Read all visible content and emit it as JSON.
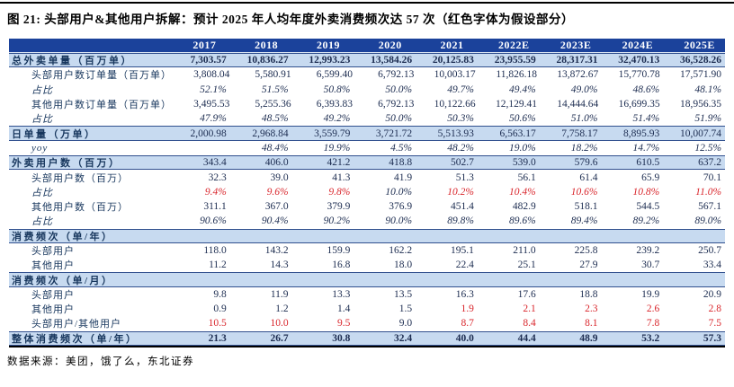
{
  "page": {
    "title": "图 21: 头部用户&其他用户拆解：预计 2025 年人均年度外卖消费频次达 57 次（红色字体为假设部分）",
    "source_note": "数据来源：美团，饿了么，东北证券"
  },
  "colors": {
    "header_bg": "#1b429b",
    "band_bg": "#c7daf0",
    "label_text": "#17365d",
    "value_text": "#1c2c50",
    "assumption_red": "#d9252b"
  },
  "table": {
    "columns": [
      "2017",
      "2018",
      "2019",
      "2020",
      "2021",
      "2022E",
      "2023E",
      "2024E",
      "2025E"
    ],
    "rows": [
      {
        "label": "总外卖单量（百万单）",
        "band": true,
        "bold_values": true,
        "indent": 0,
        "values": [
          "7,303.57",
          "10,836.27",
          "12,993.23",
          "13,584.26",
          "20,125.83",
          "23,955.59",
          "28,317.31",
          "32,470.13",
          "36,528.26"
        ]
      },
      {
        "label": "头部用户数订单量（百万单）",
        "indent": 1,
        "values": [
          "3,808.04",
          "5,580.91",
          "6,599.40",
          "6,792.13",
          "10,003.17",
          "11,826.18",
          "13,872.67",
          "15,770.78",
          "17,571.90"
        ]
      },
      {
        "label": "占比",
        "indent": 1,
        "italic": true,
        "values": [
          "52.1%",
          "51.5%",
          "50.8%",
          "50.0%",
          "49.7%",
          "49.4%",
          "49.0%",
          "48.6%",
          "48.1%"
        ]
      },
      {
        "label": "其他用户数订单量（百万单）",
        "indent": 1,
        "values": [
          "3,495.53",
          "5,255.36",
          "6,393.83",
          "6,792.13",
          "10,122.66",
          "12,129.41",
          "14,444.64",
          "16,699.35",
          "18,956.35"
        ]
      },
      {
        "label": "占比",
        "indent": 1,
        "italic": true,
        "values": [
          "47.9%",
          "48.5%",
          "49.2%",
          "50.0%",
          "50.3%",
          "50.6%",
          "51.0%",
          "51.4%",
          "51.9%"
        ]
      },
      {
        "label": "日单量（万单）",
        "band": true,
        "indent": 0,
        "values": [
          "2,000.98",
          "2,968.84",
          "3,559.79",
          "3,721.72",
          "5,513.93",
          "6,563.17",
          "7,758.17",
          "8,895.93",
          "10,007.74"
        ]
      },
      {
        "label": "yoy",
        "indent": 1,
        "italic": true,
        "values": [
          "",
          "48.4%",
          "19.9%",
          "4.5%",
          "48.2%",
          "19.0%",
          "18.2%",
          "14.7%",
          "12.5%"
        ]
      },
      {
        "label": "外卖用户数（百万）",
        "band": true,
        "indent": 0,
        "values": [
          "343.4",
          "406.0",
          "421.2",
          "418.8",
          "502.7",
          "539.0",
          "579.6",
          "610.5",
          "637.2"
        ]
      },
      {
        "label": "头部用户数（百万）",
        "indent": 1,
        "values": [
          "32.3",
          "39.0",
          "41.3",
          "41.9",
          "51.3",
          "56.1",
          "61.4",
          "65.9",
          "70.1"
        ]
      },
      {
        "label": "占比",
        "indent": 1,
        "italic": true,
        "red": [
          0,
          1,
          2,
          4,
          5,
          6,
          7,
          8
        ],
        "values": [
          "9.4%",
          "9.6%",
          "9.8%",
          "10.0%",
          "10.2%",
          "10.4%",
          "10.6%",
          "10.8%",
          "11.0%"
        ]
      },
      {
        "label": "其他用户数（百万）",
        "indent": 1,
        "values": [
          "311.1",
          "367.0",
          "379.9",
          "376.9",
          "451.4",
          "482.9",
          "518.1",
          "544.5",
          "567.1"
        ]
      },
      {
        "label": "占比",
        "indent": 1,
        "italic": true,
        "values": [
          "90.6%",
          "90.4%",
          "90.2%",
          "90.0%",
          "89.8%",
          "89.6%",
          "89.4%",
          "89.2%",
          "89.0%"
        ]
      },
      {
        "label": "消费频次（单/年）",
        "band": true,
        "indent": 0,
        "values": [
          "",
          "",
          "",
          "",
          "",
          "",
          "",
          "",
          ""
        ]
      },
      {
        "label": "头部用户",
        "indent": 1,
        "values": [
          "118.0",
          "143.2",
          "159.9",
          "162.2",
          "195.1",
          "211.0",
          "225.8",
          "239.2",
          "250.7"
        ]
      },
      {
        "label": "其他用户",
        "indent": 1,
        "values": [
          "11.2",
          "14.3",
          "16.8",
          "18.0",
          "22.4",
          "25.1",
          "27.9",
          "30.7",
          "33.4"
        ]
      },
      {
        "label": "消费频次（单/月）",
        "band": true,
        "indent": 0,
        "values": [
          "",
          "",
          "",
          "",
          "",
          "",
          "",
          "",
          ""
        ]
      },
      {
        "label": "头部用户",
        "indent": 1,
        "values": [
          "9.8",
          "11.9",
          "13.3",
          "13.5",
          "16.3",
          "17.6",
          "18.8",
          "19.9",
          "20.9"
        ]
      },
      {
        "label": "其他用户",
        "indent": 1,
        "red": [
          4,
          5,
          6,
          7,
          8
        ],
        "values": [
          "0.9",
          "1.2",
          "1.4",
          "1.5",
          "1.9",
          "2.1",
          "2.3",
          "2.6",
          "2.8"
        ]
      },
      {
        "label": "头部用户/其他用户",
        "indent": 1,
        "red": [
          0,
          1,
          2,
          4,
          5,
          6,
          7,
          8
        ],
        "values": [
          "10.5",
          "10.0",
          "9.5",
          "9.0",
          "8.7",
          "8.4",
          "8.1",
          "7.8",
          "7.5"
        ]
      },
      {
        "label": "整体消费频次（单/年）",
        "band": true,
        "bold_values": true,
        "indent": 0,
        "values": [
          "21.3",
          "26.7",
          "30.8",
          "32.4",
          "40.0",
          "44.4",
          "48.9",
          "53.2",
          "57.3"
        ]
      }
    ]
  }
}
